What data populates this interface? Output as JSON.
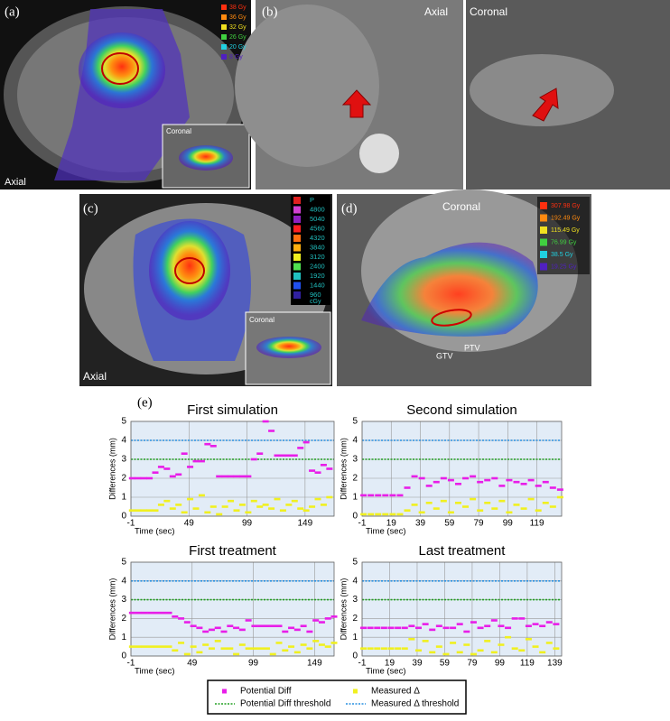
{
  "panels": {
    "a": {
      "label": "(a)",
      "view_main": "Axial",
      "view_inset": "Coronal",
      "dose_legend": [
        {
          "label": "38 Gy",
          "color": "#ff3010"
        },
        {
          "label": "36 Gy",
          "color": "#ff8a10"
        },
        {
          "label": "32 Gy",
          "color": "#f0e020"
        },
        {
          "label": "26 Gy",
          "color": "#40d040"
        },
        {
          "label": "20 Gy",
          "color": "#20d0e0"
        },
        {
          "label": "8 Gy",
          "color": "#5020c0"
        }
      ]
    },
    "b": {
      "label": "(b)",
      "view_left": "Axial",
      "view_right": "Coronal"
    },
    "c": {
      "label": "(c)",
      "view_main": "Axial",
      "view_inset": "Coronal",
      "dose_legend": [
        {
          "label": "P",
          "color": "#e02020"
        },
        {
          "label": "4800",
          "color": "#d040d0"
        },
        {
          "label": "5040",
          "color": "#9020c0"
        },
        {
          "label": "4560",
          "color": "#ff2020"
        },
        {
          "label": "4320",
          "color": "#ff7010"
        },
        {
          "label": "3840",
          "color": "#ffb010"
        },
        {
          "label": "3120",
          "color": "#f0f020"
        },
        {
          "label": "2400",
          "color": "#50e050"
        },
        {
          "label": "1920",
          "color": "#20c0c0"
        },
        {
          "label": "1440",
          "color": "#2050f0"
        },
        {
          "label": "960",
          "color": "#3020a0"
        }
      ],
      "unit": "cGy"
    },
    "d": {
      "label": "(d)",
      "view_main": "Coronal",
      "dose_legend": [
        {
          "label": "307.98 Gy",
          "color": "#ff3010"
        },
        {
          "label": "192.49 Gy",
          "color": "#ff8a10"
        },
        {
          "label": "115.49 Gy",
          "color": "#f0e020"
        },
        {
          "label": "76.99 Gy",
          "color": "#40d040"
        },
        {
          "label": "38.5 Gy",
          "color": "#20d0e0"
        },
        {
          "label": "19.25 Gy",
          "color": "#5020c0"
        }
      ],
      "gtv": "GTV",
      "ptv": "PTV"
    },
    "e": {
      "label": "(e)"
    }
  },
  "legend": [
    {
      "name": "Potential Diff",
      "color": "#e81ee8",
      "marker": "square"
    },
    {
      "name": "Measured Δ",
      "color": "#f0f020",
      "marker": "square"
    },
    {
      "name": "Potential Diff threshold",
      "color": "#22a022",
      "marker": "dotted"
    },
    {
      "name": "Measured Δ threshold",
      "color": "#2a90e0",
      "marker": "dotted"
    }
  ],
  "chart_data": [
    {
      "type": "scatter",
      "title": "First simulation",
      "xlabel": "Time (sec)",
      "ylabel": "Differences (mm)",
      "xlim": [
        -1,
        174
      ],
      "xticks": [
        -1,
        49,
        99,
        149
      ],
      "ylim": [
        0,
        5
      ],
      "yticks": [
        0,
        1,
        2,
        3,
        4,
        5
      ],
      "grid": true,
      "reference_lines": [
        {
          "value": 3,
          "color": "#22a022"
        },
        {
          "value": 4,
          "color": "#2a90e0"
        }
      ],
      "x": [
        0,
        5,
        10,
        15,
        20,
        25,
        30,
        35,
        40,
        45,
        50,
        55,
        60,
        65,
        70,
        75,
        80,
        85,
        90,
        95,
        100,
        105,
        110,
        115,
        120,
        125,
        130,
        135,
        140,
        145,
        150,
        155,
        160,
        165,
        170
      ],
      "series": [
        {
          "color": "#e81ee8",
          "values": [
            2.0,
            2.0,
            2.0,
            2.0,
            2.3,
            2.6,
            2.5,
            2.1,
            2.2,
            3.3,
            2.6,
            2.9,
            2.9,
            3.8,
            3.7,
            2.1,
            2.1,
            2.1,
            2.1,
            2.1,
            2.1,
            3.0,
            3.3,
            5.0,
            4.5,
            3.2,
            3.2,
            3.2,
            3.2,
            3.6,
            3.9,
            2.4,
            2.3,
            2.7,
            2.5
          ]
        },
        {
          "color": "#f0f020",
          "values": [
            0.3,
            0.3,
            0.3,
            0.3,
            0.3,
            0.6,
            0.8,
            0.4,
            0.6,
            0.2,
            0.9,
            0.4,
            1.1,
            0.2,
            0.5,
            0.1,
            0.5,
            0.8,
            0.3,
            0.6,
            0.2,
            0.8,
            0.5,
            0.6,
            0.4,
            0.9,
            0.3,
            0.6,
            0.8,
            0.4,
            0.3,
            0.5,
            0.9,
            0.6,
            1.0
          ]
        }
      ]
    },
    {
      "type": "scatter",
      "title": "Second simulation",
      "xlabel": "Time (sec)",
      "ylabel": "Differences (mm)",
      "xlim": [
        -1,
        136
      ],
      "xticks": [
        -1,
        19,
        39,
        59,
        79,
        99,
        119
      ],
      "ylim": [
        0,
        5
      ],
      "yticks": [
        0,
        1,
        2,
        3,
        4,
        5
      ],
      "grid": true,
      "reference_lines": [
        {
          "value": 3,
          "color": "#22a022"
        },
        {
          "value": 4,
          "color": "#2a90e0"
        }
      ],
      "x": [
        0,
        5,
        10,
        15,
        20,
        25,
        30,
        35,
        40,
        45,
        50,
        55,
        60,
        65,
        70,
        75,
        80,
        85,
        90,
        95,
        100,
        105,
        110,
        115,
        120,
        125,
        130,
        135
      ],
      "series": [
        {
          "color": "#e81ee8",
          "values": [
            1.1,
            1.1,
            1.1,
            1.1,
            1.1,
            1.1,
            1.5,
            2.1,
            2.0,
            1.6,
            1.8,
            2.0,
            1.9,
            1.7,
            2.0,
            2.1,
            1.8,
            1.9,
            2.0,
            1.6,
            1.9,
            1.8,
            1.7,
            1.9,
            1.6,
            1.8,
            1.5,
            1.4
          ]
        },
        {
          "color": "#f0f020",
          "values": [
            0.1,
            0.1,
            0.1,
            0.1,
            0.1,
            0.1,
            0.3,
            0.6,
            0.2,
            0.7,
            0.4,
            0.8,
            0.2,
            0.7,
            0.5,
            0.9,
            0.3,
            0.7,
            0.4,
            0.8,
            0.2,
            0.6,
            0.4,
            0.9,
            0.3,
            0.7,
            0.5,
            1.0
          ]
        }
      ]
    },
    {
      "type": "scatter",
      "title": "First treatment",
      "xlabel": "Time (sec)",
      "ylabel": "Differences (mm)",
      "xlim": [
        -1,
        165
      ],
      "xticks": [
        -1,
        49,
        99,
        149
      ],
      "ylim": [
        0,
        5
      ],
      "yticks": [
        0,
        1,
        2,
        3,
        4,
        5
      ],
      "grid": true,
      "reference_lines": [
        {
          "value": 3,
          "color": "#22a022"
        },
        {
          "value": 4,
          "color": "#2a90e0"
        }
      ],
      "x": [
        0,
        5,
        10,
        15,
        20,
        25,
        30,
        35,
        40,
        45,
        50,
        55,
        60,
        65,
        70,
        75,
        80,
        85,
        90,
        95,
        100,
        105,
        110,
        115,
        120,
        125,
        130,
        135,
        140,
        145,
        150,
        155,
        160,
        165
      ],
      "series": [
        {
          "color": "#e81ee8",
          "values": [
            2.3,
            2.3,
            2.3,
            2.3,
            2.3,
            2.3,
            2.3,
            2.1,
            2.0,
            1.8,
            1.6,
            1.5,
            1.3,
            1.4,
            1.5,
            1.3,
            1.6,
            1.5,
            1.4,
            1.9,
            1.6,
            1.6,
            1.6,
            1.6,
            1.6,
            1.3,
            1.5,
            1.4,
            1.6,
            1.3,
            1.9,
            1.8,
            2.0,
            2.1
          ]
        },
        {
          "color": "#f0f020",
          "values": [
            0.5,
            0.5,
            0.5,
            0.5,
            0.5,
            0.5,
            0.5,
            0.3,
            0.7,
            0.1,
            0.5,
            0.2,
            0.6,
            0.4,
            0.8,
            0.4,
            0.4,
            0.1,
            0.6,
            0.4,
            0.4,
            0.4,
            0.4,
            0.1,
            0.7,
            0.3,
            0.5,
            0.2,
            0.6,
            0.4,
            0.8,
            0.6,
            0.5,
            0.7
          ]
        }
      ]
    },
    {
      "type": "scatter",
      "title": "Last treatment",
      "xlabel": "Time (sec)",
      "ylabel": "Differences (mm)",
      "xlim": [
        -1,
        144
      ],
      "xticks": [
        -1,
        19,
        39,
        59,
        79,
        99,
        119,
        139
      ],
      "ylim": [
        0,
        5
      ],
      "yticks": [
        0,
        1,
        2,
        3,
        4,
        5
      ],
      "grid": true,
      "reference_lines": [
        {
          "value": 3,
          "color": "#22a022"
        },
        {
          "value": 4,
          "color": "#2a90e0"
        }
      ],
      "x": [
        0,
        5,
        10,
        15,
        20,
        25,
        30,
        35,
        40,
        45,
        50,
        55,
        60,
        65,
        70,
        75,
        80,
        85,
        90,
        95,
        100,
        105,
        110,
        115,
        120,
        125,
        130,
        135,
        140
      ],
      "series": [
        {
          "color": "#e81ee8",
          "values": [
            1.5,
            1.5,
            1.5,
            1.5,
            1.5,
            1.5,
            1.5,
            1.6,
            1.5,
            1.7,
            1.4,
            1.6,
            1.5,
            1.5,
            1.7,
            1.3,
            1.8,
            1.5,
            1.6,
            1.9,
            1.6,
            1.5,
            2.0,
            2.0,
            1.6,
            1.7,
            1.6,
            1.8,
            1.7
          ]
        },
        {
          "color": "#f0f020",
          "values": [
            0.4,
            0.4,
            0.4,
            0.4,
            0.4,
            0.4,
            0.4,
            0.9,
            0.3,
            0.8,
            0.2,
            0.5,
            0.1,
            0.7,
            0.2,
            0.6,
            0.1,
            0.3,
            0.8,
            0.2,
            0.6,
            1.0,
            0.4,
            0.3,
            0.9,
            0.5,
            0.2,
            0.7,
            0.4
          ]
        }
      ]
    }
  ]
}
